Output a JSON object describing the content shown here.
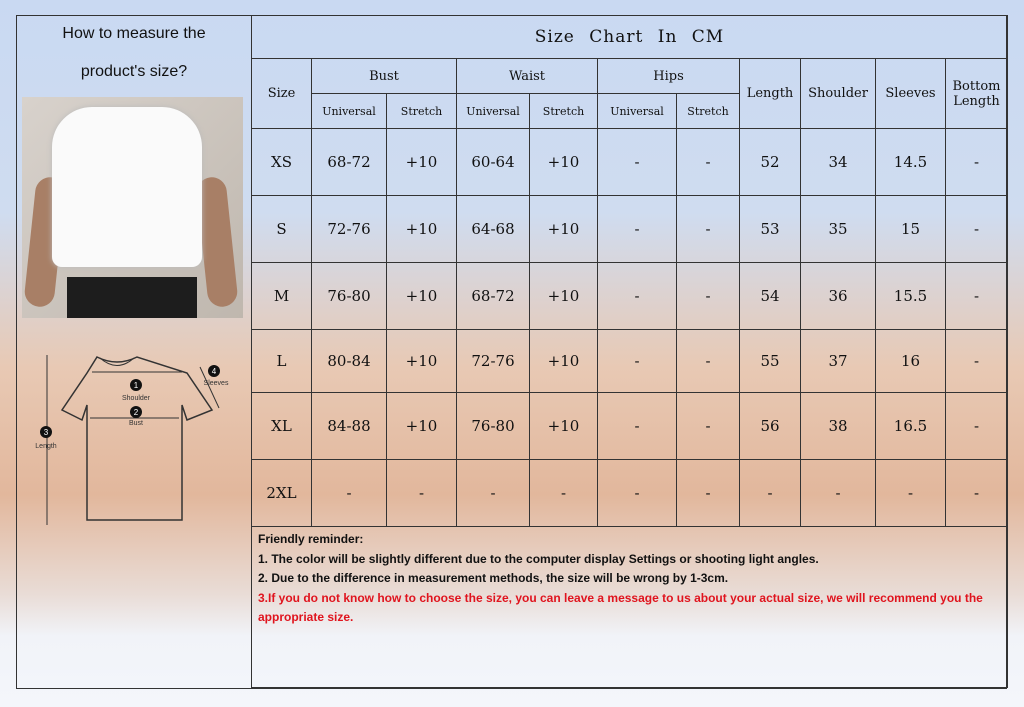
{
  "left_panel": {
    "title_line1": "How to measure the",
    "title_line2": "product's size?",
    "diagram_labels": {
      "shoulder": "Shoulder",
      "bust": "Bust",
      "length": "Length",
      "sleeves": "Sleeves",
      "n1": "1",
      "n2": "2",
      "n3": "3",
      "n4": "4"
    }
  },
  "table": {
    "title": "Size Chart In CM",
    "headers": {
      "size": "Size",
      "bust": "Bust",
      "waist": "Waist",
      "hips": "Hips",
      "length": "Length",
      "shoulder": "Shoulder",
      "sleeves": "Sleeves",
      "bottom_length": "Bottom Length",
      "universal": "Universal",
      "stretch": "Stretch"
    },
    "rows": [
      [
        "XS",
        "68-72",
        "+10",
        "60-64",
        "+10",
        "-",
        "-",
        "52",
        "34",
        "14.5",
        "-"
      ],
      [
        "S",
        "72-76",
        "+10",
        "64-68",
        "+10",
        "-",
        "-",
        "53",
        "35",
        "15",
        "-"
      ],
      [
        "M",
        "76-80",
        "+10",
        "68-72",
        "+10",
        "-",
        "-",
        "54",
        "36",
        "15.5",
        "-"
      ],
      [
        "L",
        "80-84",
        "+10",
        "72-76",
        "+10",
        "-",
        "-",
        "55",
        "37",
        "16",
        "-"
      ],
      [
        "XL",
        "84-88",
        "+10",
        "76-80",
        "+10",
        "-",
        "-",
        "56",
        "38",
        "16.5",
        "-"
      ],
      [
        "2XL",
        "-",
        "-",
        "-",
        "-",
        "-",
        "-",
        "-",
        "-",
        "-",
        "-"
      ]
    ]
  },
  "reminder": {
    "heading": "Friendly reminder:",
    "line1": "1. The color will be slightly different due to the computer display Settings or shooting light angles.",
    "line2": "2. Due to the difference in measurement methods, the size will be wrong by 1-3cm.",
    "line3": "3.If you do not know how to choose the size, you can leave a message to us about your actual size, we will recommend you the appropriate size."
  },
  "colors": {
    "warning": "#e0141e",
    "border": "#333333"
  }
}
